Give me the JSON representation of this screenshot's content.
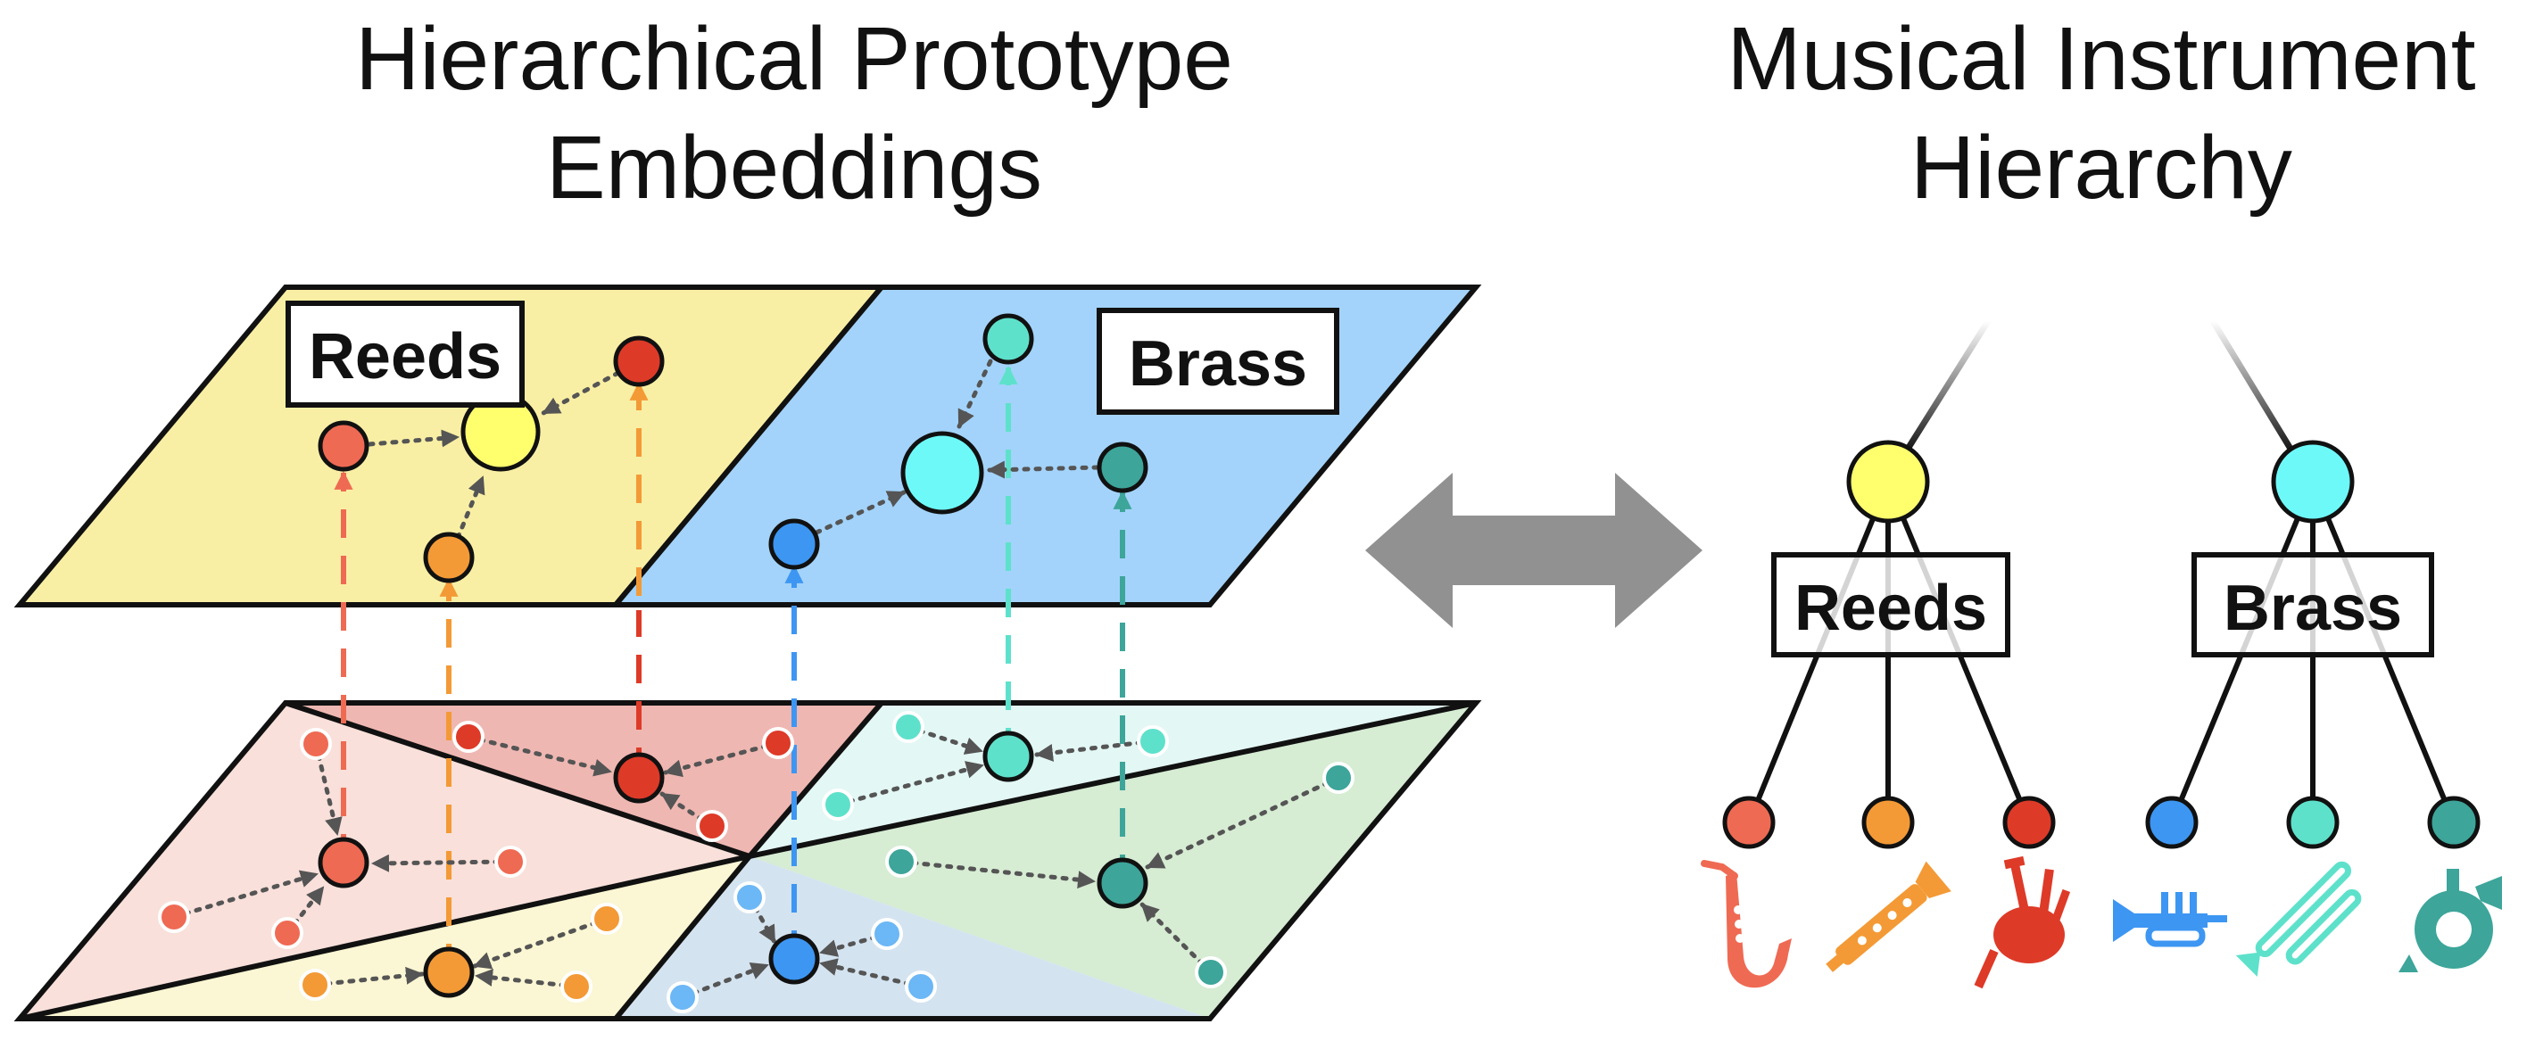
{
  "left_title": {
    "line1": "Hierarchical Prototype",
    "line2": "Embeddings"
  },
  "right_title": {
    "line1": "Musical Instrument",
    "line2": "Hierarchy"
  },
  "embedding_labels": {
    "reeds": "Reeds",
    "brass": "Brass"
  },
  "hierarchy_labels": {
    "reeds": "Reeds",
    "brass": "Brass"
  },
  "colors": {
    "reeds_region": "#f9efa4",
    "brass_region": "#a3d3fa",
    "reeds_parent": "#ffff6e",
    "brass_parent": "#6ef9f9",
    "saxophone": "#ef6a53",
    "clarinet": "#f39a36",
    "bagpipe": "#de3a28",
    "trumpet": "#3d96f2",
    "trombone": "#5ee1cb",
    "tuba": "#3da59a",
    "arrow": "#919191"
  },
  "icons": {
    "reeds": [
      "saxophone-icon",
      "clarinet-icon",
      "bagpipe-icon"
    ],
    "brass": [
      "trumpet-icon",
      "trombone-icon",
      "tuba-icon"
    ]
  }
}
